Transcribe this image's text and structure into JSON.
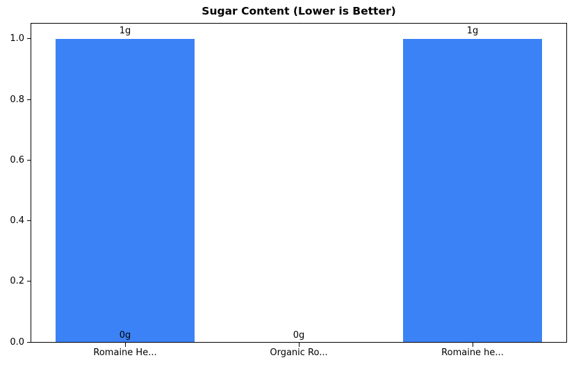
{
  "chart_data": {
    "type": "bar",
    "title": "Sugar Content (Lower is Better)",
    "categories": [
      "Romaine He...",
      "Organic Ro...",
      "Romaine he..."
    ],
    "values": [
      1,
      0,
      1
    ],
    "unit": "g",
    "yticks": [
      "0.0",
      "0.2",
      "0.4",
      "0.6",
      "0.8",
      "1.0"
    ],
    "ylim": [
      0,
      1.05
    ],
    "xlabel": "",
    "ylabel": "",
    "grid": false,
    "legend_position": "none",
    "bar_color": "#3b82f6",
    "axis_color": "#000000",
    "text_color": "#000000",
    "annotations": [
      {
        "text": "1g",
        "category_index": 0,
        "placement": "above-bar",
        "value": 1
      },
      {
        "text": "0g",
        "category_index": 0,
        "placement": "axis-base",
        "value": 0
      },
      {
        "text": "0g",
        "category_index": 1,
        "placement": "axis-base",
        "value": 0
      },
      {
        "text": "1g",
        "category_index": 2,
        "placement": "above-bar",
        "value": 1
      }
    ]
  }
}
